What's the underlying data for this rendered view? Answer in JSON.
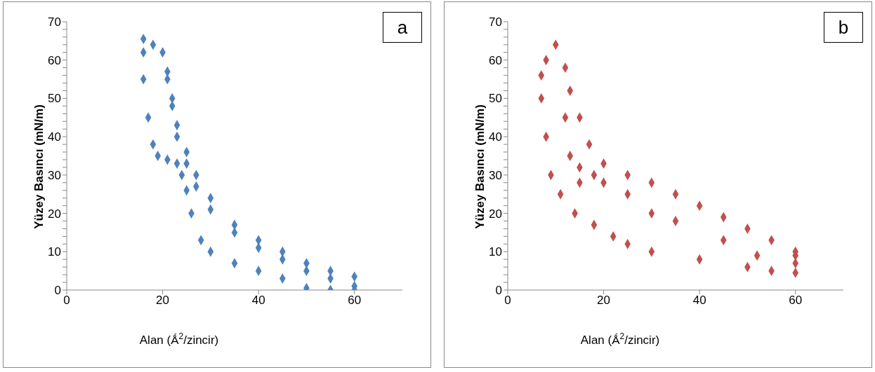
{
  "chart_data": [
    {
      "type": "scatter",
      "annotations": [
        "a"
      ],
      "xlabel": "Alan (Ǻ$^{2}$/zincir)",
      "ylabel": "Yüzey Basıncı (mN/m)",
      "xlim": [
        0,
        70
      ],
      "xticks": [
        0,
        20,
        40,
        60
      ],
      "ylim": [
        0,
        70
      ],
      "yticks": [
        0,
        {
          "value": 2,
          "label": null
        },
        {
          "value": 4,
          "label": null
        },
        {
          "value": 6,
          "label": null
        },
        {
          "value": 8,
          "label": null
        },
        10,
        {
          "value": 12,
          "label": null
        },
        {
          "value": 14,
          "label": null
        },
        {
          "value": 16,
          "label": null
        },
        {
          "value": 18,
          "label": null
        },
        20,
        {
          "value": 22,
          "label": null
        },
        {
          "value": 24,
          "label": null
        },
        {
          "value": 26,
          "label": null
        },
        {
          "value": 28,
          "label": null
        },
        30,
        {
          "value": 32,
          "label": null
        },
        {
          "value": 34,
          "label": null
        },
        {
          "value": 36,
          "label": null
        },
        {
          "value": 38,
          "label": null
        },
        40,
        {
          "value": 42,
          "label": null
        },
        {
          "value": 44,
          "label": null
        },
        {
          "value": 46,
          "label": null
        },
        {
          "value": 48,
          "label": null
        },
        50,
        {
          "value": 52,
          "label": null
        },
        {
          "value": 54,
          "label": null
        },
        {
          "value": 56,
          "label": null
        },
        {
          "value": 58,
          "label": null
        },
        60,
        {
          "value": 62,
          "label": null
        },
        {
          "value": 64,
          "label": null
        },
        {
          "value": 66,
          "label": null
        },
        {
          "value": 68,
          "label": null
        },
        70
      ],
      "grid": false,
      "legend": false,
      "marker": "diamond",
      "series": [
        {
          "color": "#4f81bd",
          "x": [
            60,
            55,
            50,
            45,
            40,
            35,
            30,
            27,
            25,
            23,
            22,
            21,
            20,
            18,
            16,
            16,
            16,
            17,
            18,
            19,
            21,
            23,
            24,
            25,
            26,
            28,
            30,
            35,
            40,
            45,
            50,
            55,
            60,
            60,
            55,
            50,
            45,
            40,
            35,
            30,
            27,
            25,
            23,
            22,
            21
          ],
          "values": [
            3.5,
            5,
            7,
            10,
            13,
            17,
            24,
            30,
            36,
            43,
            50,
            57,
            62,
            64,
            65.5,
            62,
            55,
            45,
            38,
            35,
            34,
            33,
            30,
            26,
            20,
            13,
            10,
            7,
            5,
            3,
            0.5,
            0,
            0,
            1,
            3,
            5,
            8,
            11,
            15,
            21,
            27,
            33,
            40,
            48,
            55
          ]
        }
      ]
    },
    {
      "type": "scatter",
      "annotations": [
        "b"
      ],
      "xlabel": "Alan (Ǻ$^{2}$/zincir)",
      "ylabel": "Yüzey Basıncı (mN/m)",
      "xlim": [
        0,
        70
      ],
      "xticks": [
        0,
        20,
        40,
        60
      ],
      "ylim": [
        0,
        70
      ],
      "yticks": [
        0,
        {
          "value": 2,
          "label": null
        },
        {
          "value": 4,
          "label": null
        },
        {
          "value": 6,
          "label": null
        },
        {
          "value": 8,
          "label": null
        },
        10,
        {
          "value": 12,
          "label": null
        },
        {
          "value": 14,
          "label": null
        },
        {
          "value": 16,
          "label": null
        },
        {
          "value": 18,
          "label": null
        },
        20,
        {
          "value": 22,
          "label": null
        },
        {
          "value": 24,
          "label": null
        },
        {
          "value": 26,
          "label": null
        },
        {
          "value": 28,
          "label": null
        },
        30,
        {
          "value": 32,
          "label": null
        },
        {
          "value": 34,
          "label": null
        },
        {
          "value": 36,
          "label": null
        },
        {
          "value": 38,
          "label": null
        },
        40,
        {
          "value": 42,
          "label": null
        },
        {
          "value": 44,
          "label": null
        },
        {
          "value": 46,
          "label": null
        },
        {
          "value": 48,
          "label": null
        },
        50,
        {
          "value": 52,
          "label": null
        },
        {
          "value": 54,
          "label": null
        },
        {
          "value": 56,
          "label": null
        },
        {
          "value": 58,
          "label": null
        },
        60,
        {
          "value": 62,
          "label": null
        },
        {
          "value": 64,
          "label": null
        },
        {
          "value": 66,
          "label": null
        },
        {
          "value": 68,
          "label": null
        },
        70
      ],
      "grid": false,
      "legend": false,
      "marker": "diamond",
      "series": [
        {
          "color": "#c0504d",
          "x": [
            60,
            55,
            50,
            45,
            40,
            35,
            30,
            25,
            20,
            17,
            15,
            13,
            12,
            10,
            8,
            7,
            7,
            8,
            9,
            11,
            14,
            18,
            22,
            25,
            30,
            40,
            50,
            55,
            60,
            60,
            52,
            45,
            35,
            30,
            25,
            20,
            15,
            13,
            12,
            18,
            15,
            60
          ],
          "values": [
            10,
            13,
            16,
            19,
            22,
            25,
            28,
            30,
            33,
            38,
            45,
            52,
            58,
            64,
            60,
            56,
            50,
            40,
            30,
            25,
            20,
            17,
            14,
            12,
            10,
            8,
            6,
            5,
            4.5,
            9,
            9,
            13,
            18,
            20,
            25,
            28,
            32,
            35,
            45,
            30,
            28,
            7
          ]
        }
      ]
    }
  ]
}
